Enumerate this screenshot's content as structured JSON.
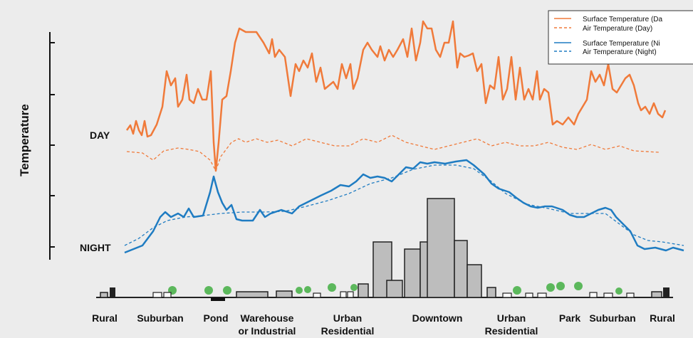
{
  "axis": {
    "label": "Temperature"
  },
  "curve_labels": {
    "day": "DAY",
    "night": "NIGHT"
  },
  "legend": [
    {
      "label": "Surface Temperature (Da"
    },
    {
      "label": "Air Temperature  (Day)"
    },
    {
      "label": "Surface Temperature (Ni"
    },
    {
      "label": "Air Temperature (Night)"
    }
  ],
  "zones": [
    {
      "lines": [
        "Rural"
      ]
    },
    {
      "lines": [
        "Suburban"
      ]
    },
    {
      "lines": [
        "Pond"
      ]
    },
    {
      "lines": [
        "Warehouse",
        "or Industrial"
      ]
    },
    {
      "lines": [
        "Urban",
        "Residential"
      ]
    },
    {
      "lines": [
        "Downtown"
      ]
    },
    {
      "lines": [
        "Urban",
        "Residential"
      ]
    },
    {
      "lines": [
        "Park"
      ]
    },
    {
      "lines": [
        "Suburban"
      ]
    },
    {
      "lines": [
        "Rural"
      ]
    }
  ]
}
